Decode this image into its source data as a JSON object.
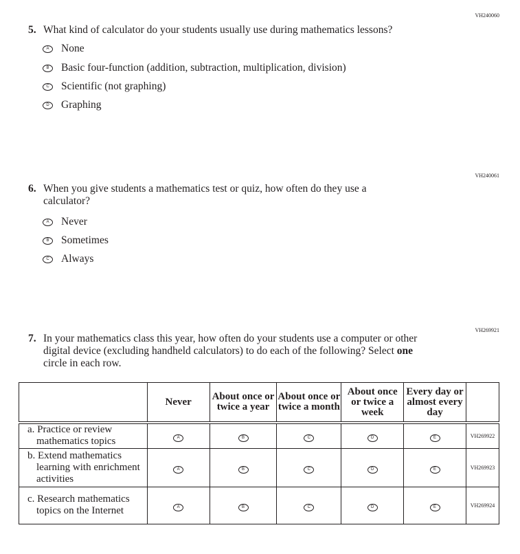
{
  "q5": {
    "code": "VH240060",
    "number": "5.",
    "text": "What kind of calculator do your students usually use during mathematics lessons?",
    "options": [
      {
        "letter": "A",
        "label": "None"
      },
      {
        "letter": "B",
        "label": "Basic four-function (addition, subtraction, multiplication, division)"
      },
      {
        "letter": "C",
        "label": "Scientific (not graphing)"
      },
      {
        "letter": "D",
        "label": "Graphing"
      }
    ]
  },
  "q6": {
    "code": "VH240061",
    "number": "6.",
    "text": "When you give students a mathematics test or quiz, how often do they use a calculator?",
    "options": [
      {
        "letter": "A",
        "label": "Never"
      },
      {
        "letter": "B",
        "label": "Sometimes"
      },
      {
        "letter": "C",
        "label": "Always"
      }
    ]
  },
  "q7": {
    "code": "VH269921",
    "number": "7.",
    "text_pre": "In your mathematics class this year, how often do your students use a computer or other digital device (excluding handheld calculators) to do each of the following? Select ",
    "text_bold": "one",
    "text_post": " circle in each row.",
    "columns": [
      "Never",
      "About once or twice a year",
      "About once or twice a month",
      "About once or twice a week",
      "Every day or almost every day"
    ],
    "letters": [
      "A",
      "B",
      "C",
      "D",
      "E"
    ],
    "rows": [
      {
        "label": "a. Practice or review mathematics topics",
        "code": "VH269922"
      },
      {
        "label": "b. Extend mathematics learning with enrichment activities",
        "code": "VH269923"
      },
      {
        "label": "c. Research mathematics topics on the Internet",
        "code": "VH269924"
      }
    ]
  }
}
